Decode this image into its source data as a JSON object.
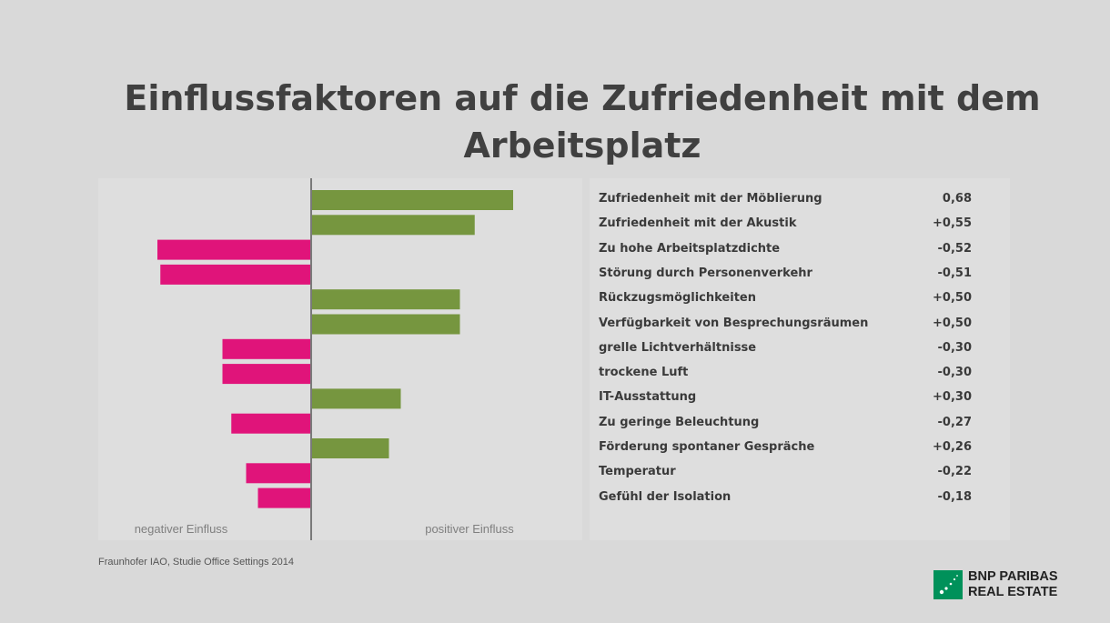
{
  "title": "Einflussfaktoren auf die Zufriedenheit mit dem Arbeitsplatz",
  "source": "Fraunhofer IAO, Studie Office Settings 2014",
  "logo": {
    "line1": "BNP PARIBAS",
    "line2": "REAL ESTATE"
  },
  "colors": {
    "positive": "#76963f",
    "negative": "#e0147a",
    "axis": "#7a7a7a"
  },
  "chart_data": {
    "type": "bar",
    "orientation": "horizontal",
    "title": "Einflussfaktoren auf die Zufriedenheit mit dem Arbeitsplatz",
    "xlim": [
      -0.55,
      0.7
    ],
    "grid": false,
    "axis_labels": {
      "negative": "negativer Einfluss",
      "positive": "positiver Einfluss"
    },
    "categories": [
      "Zufriedenheit mit der Möblierung",
      "Zufriedenheit mit der Akustik",
      "Zu hohe Arbeitsplatzdichte",
      "Störung durch Personenverkehr",
      "Rückzugsmöglichkeiten",
      "Verfügbarkeit von Besprechungsräumen",
      "grelle Lichtverhältnisse",
      "trockene Luft",
      "IT-Ausstattung",
      "Zu geringe Beleuchtung",
      "Förderung spontaner Gespräche",
      "Temperatur",
      "Gefühl der Isolation"
    ],
    "values": [
      0.68,
      0.55,
      -0.52,
      -0.51,
      0.5,
      0.5,
      -0.3,
      -0.3,
      0.3,
      -0.27,
      0.26,
      -0.22,
      -0.18
    ],
    "value_labels": [
      "0,68",
      "+0,55",
      "-0,52",
      "-0,51",
      "+0,50",
      "+0,50",
      "-0,30",
      "-0,30",
      "+0,30",
      "-0,27",
      "+0,26",
      "-0,22",
      "-0,18"
    ]
  }
}
